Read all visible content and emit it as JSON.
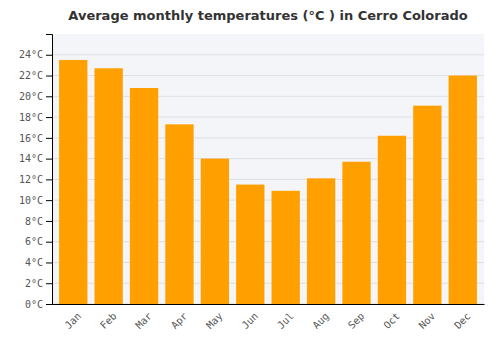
{
  "chart_data": {
    "type": "bar",
    "title": "Average monthly temperatures (°C ) in Cerro Colorado",
    "categories": [
      "Jan",
      "Feb",
      "Mar",
      "Apr",
      "May",
      "Jun",
      "Jul",
      "Aug",
      "Sep",
      "Oct",
      "Nov",
      "Dec"
    ],
    "values": [
      23.5,
      22.7,
      20.8,
      17.3,
      14.0,
      11.5,
      10.9,
      12.1,
      13.7,
      16.2,
      19.1,
      22.0
    ],
    "color": "#FFA000",
    "ylim": [
      0,
      26
    ],
    "yticks": [
      {
        "value": 0,
        "label": "0°C"
      },
      {
        "value": 2,
        "label": "2°C"
      },
      {
        "value": 4,
        "label": "4°C"
      },
      {
        "value": 6,
        "label": "6°C"
      },
      {
        "value": 8,
        "label": "8°C"
      },
      {
        "value": 10,
        "label": "10°C"
      },
      {
        "value": 12,
        "label": "12°C"
      },
      {
        "value": 14,
        "label": "14°C"
      },
      {
        "value": 16,
        "label": "16°C"
      },
      {
        "value": 18,
        "label": "18°C"
      },
      {
        "value": 20,
        "label": "20°C"
      },
      {
        "value": 22,
        "label": "22°C"
      },
      {
        "value": 24,
        "label": "24°C"
      }
    ],
    "grid": true
  }
}
